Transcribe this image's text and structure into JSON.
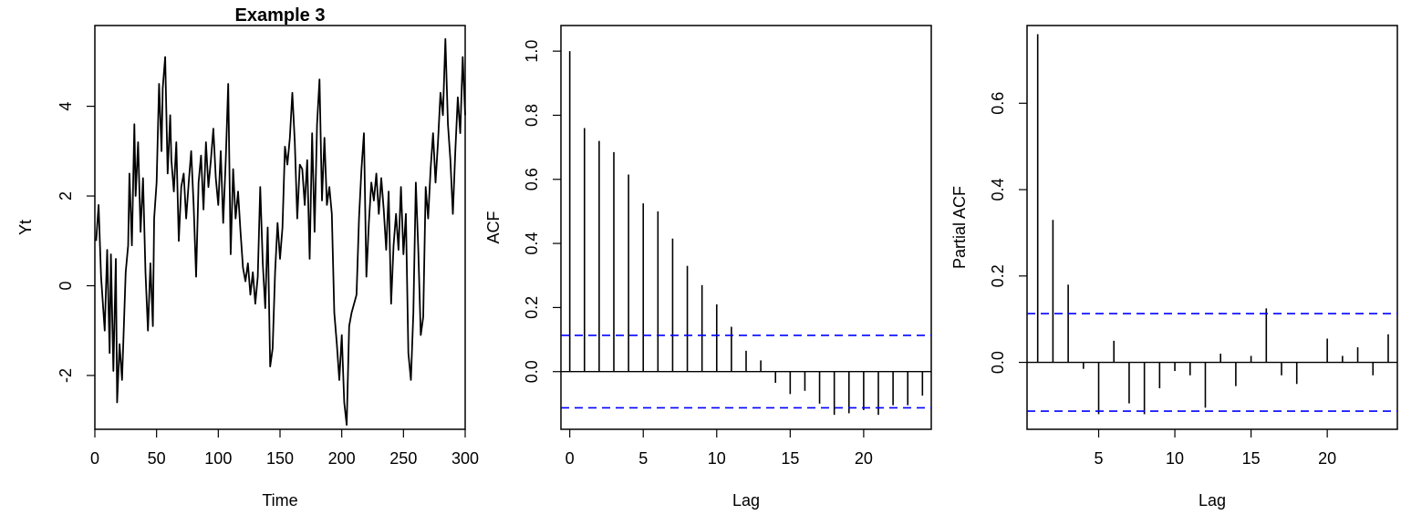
{
  "chart_data": [
    {
      "type": "line",
      "title": "Example 3",
      "xlabel": "Time",
      "ylabel": "Yt",
      "xlim": [
        0,
        300
      ],
      "ylim": [
        -3.2,
        5.8
      ],
      "xticks": [
        "0",
        "50",
        "100",
        "150",
        "200",
        "250",
        "300"
      ],
      "yticks": [
        "-2",
        "0",
        "2",
        "4"
      ],
      "grid": false,
      "series": [
        {
          "x": [
            1,
            3,
            5,
            8,
            10,
            12,
            13,
            15,
            17,
            18,
            20,
            22,
            25,
            27,
            28,
            30,
            32,
            33,
            35,
            37,
            39,
            41,
            43,
            45,
            47,
            48,
            50,
            52,
            54,
            55,
            57,
            59,
            61,
            62,
            64,
            66,
            68,
            70,
            72,
            74,
            76,
            78,
            80,
            82,
            84,
            86,
            88,
            90,
            92,
            94,
            96,
            98,
            100,
            102,
            104,
            106,
            108,
            110,
            112,
            114,
            116,
            118,
            120,
            122,
            124,
            126,
            128,
            130,
            132,
            134,
            136,
            138,
            140,
            142,
            144,
            146,
            148,
            150,
            152,
            154,
            156,
            158,
            160,
            162,
            164,
            166,
            168,
            170,
            172,
            174,
            176,
            178,
            180,
            182,
            184,
            186,
            188,
            190,
            192,
            194,
            196,
            198,
            200,
            202,
            204,
            206,
            208,
            210,
            212,
            214,
            216,
            218,
            220,
            222,
            224,
            226,
            228,
            230,
            232,
            234,
            236,
            238,
            240,
            242,
            244,
            246,
            248,
            250,
            252,
            254,
            256,
            258,
            260,
            262,
            264,
            266,
            268,
            270,
            272,
            274,
            276,
            278,
            280,
            282,
            284,
            286,
            288,
            290,
            292,
            294,
            296,
            298,
            300
          ],
          "y": [
            1.0,
            1.8,
            0.2,
            -1.0,
            0.8,
            -1.5,
            0.7,
            -1.9,
            0.6,
            -2.6,
            -1.3,
            -2.1,
            0.3,
            0.9,
            2.5,
            0.9,
            3.6,
            2.0,
            3.2,
            1.2,
            2.4,
            0.3,
            -1.0,
            0.5,
            -0.9,
            1.5,
            2.3,
            4.5,
            3.0,
            4.4,
            5.1,
            2.5,
            3.8,
            2.8,
            2.1,
            3.2,
            1.0,
            2.2,
            2.5,
            1.5,
            2.3,
            3.0,
            1.8,
            0.2,
            2.3,
            2.9,
            1.7,
            3.2,
            2.2,
            2.8,
            3.5,
            2.4,
            1.8,
            3.0,
            1.4,
            2.8,
            4.5,
            0.7,
            2.6,
            1.5,
            2.1,
            1.2,
            0.4,
            0.1,
            0.5,
            -0.2,
            0.3,
            -0.4,
            0.2,
            2.2,
            0.5,
            -0.5,
            1.3,
            -1.8,
            -1.4,
            0.3,
            1.4,
            0.6,
            1.3,
            3.1,
            2.7,
            3.3,
            4.3,
            3.2,
            1.5,
            2.7,
            2.6,
            1.8,
            2.8,
            0.6,
            3.4,
            1.2,
            3.6,
            4.6,
            1.9,
            3.3,
            1.8,
            2.2,
            1.6,
            -0.6,
            -1.3,
            -2.1,
            -1.1,
            -2.6,
            -3.1,
            -0.9,
            -0.6,
            -0.4,
            -0.2,
            1.5,
            2.6,
            3.4,
            0.2,
            1.4,
            2.3,
            1.9,
            2.5,
            1.6,
            2.4,
            1.7,
            0.8,
            2.1,
            -0.4,
            0.9,
            1.6,
            0.8,
            2.2,
            0.7,
            1.6,
            -1.5,
            -2.1,
            -0.6,
            2.3,
            0.8,
            -1.1,
            -0.7,
            2.2,
            1.5,
            2.6,
            3.4,
            2.3,
            3.2,
            4.3,
            3.8,
            5.5,
            3.6,
            2.8,
            1.6,
            3.0,
            4.2,
            3.4,
            5.1,
            3.8
          ],
          "color": "#000000"
        }
      ]
    },
    {
      "type": "bar",
      "xlabel": "Lag",
      "ylabel": "ACF",
      "xlim": [
        -0.6,
        24.6
      ],
      "ylim": [
        -0.18,
        1.08
      ],
      "xticks": [
        "0",
        "5",
        "10",
        "15",
        "20"
      ],
      "yticks": [
        "0.0",
        "0.2",
        "0.4",
        "0.6",
        "0.8",
        "1.0"
      ],
      "x": [
        0,
        1,
        2,
        3,
        4,
        5,
        6,
        7,
        8,
        9,
        10,
        11,
        12,
        13,
        14,
        15,
        16,
        17,
        18,
        19,
        20,
        21,
        22,
        23,
        24
      ],
      "values": [
        1.0,
        0.76,
        0.72,
        0.685,
        0.615,
        0.525,
        0.5,
        0.415,
        0.33,
        0.27,
        0.21,
        0.14,
        0.065,
        0.035,
        -0.035,
        -0.07,
        -0.06,
        -0.1,
        -0.135,
        -0.13,
        -0.12,
        -0.135,
        -0.105,
        -0.105,
        -0.075
      ],
      "confidence_band": 0.113,
      "band_color": "#0000ff",
      "grid": false
    },
    {
      "type": "bar",
      "xlabel": "Lag",
      "ylabel": "Partial ACF",
      "xlim": [
        0.3,
        24.6
      ],
      "ylim": [
        -0.155,
        0.78
      ],
      "xticks": [
        "5",
        "10",
        "15",
        "20"
      ],
      "yticks": [
        "0.0",
        "0.2",
        "0.4",
        "0.6"
      ],
      "x": [
        1,
        2,
        3,
        4,
        5,
        6,
        7,
        8,
        9,
        10,
        11,
        12,
        13,
        14,
        15,
        16,
        17,
        18,
        19,
        20,
        21,
        22,
        23,
        24
      ],
      "values": [
        0.76,
        0.33,
        0.18,
        -0.015,
        -0.12,
        0.05,
        -0.095,
        -0.12,
        -0.06,
        -0.02,
        -0.03,
        -0.105,
        0.02,
        -0.055,
        0.015,
        0.125,
        -0.03,
        -0.05,
        0.0,
        0.055,
        0.015,
        0.035,
        -0.03,
        0.065
      ],
      "confidence_band": 0.113,
      "band_color": "#0000ff",
      "grid": false
    }
  ]
}
